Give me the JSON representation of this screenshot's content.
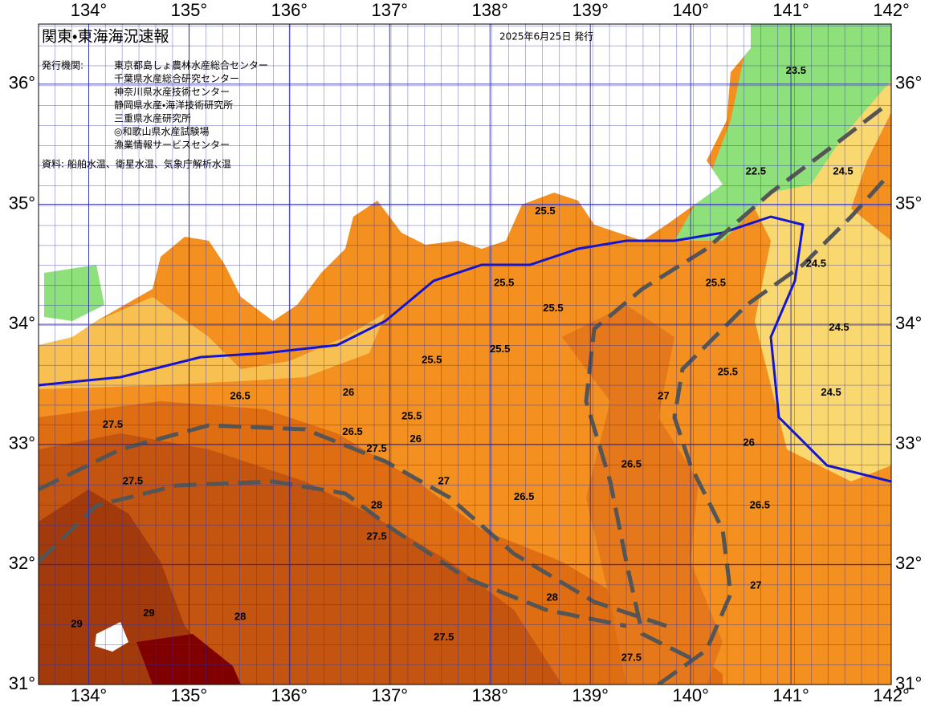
{
  "header": {
    "title": "関東・東海海況速報",
    "issued": "2025年6月25日 発行",
    "publisher_label": "発行機関:",
    "publishers": [
      "東京都島しょ農林水産総合センター",
      "千葉県水産総合研究センター",
      "神奈川県水産技術センター",
      "静岡県水産・海洋技術研究所",
      "三重県水産研究所",
      "◎和歌山県水産試験場",
      "漁業情報サービスセンター"
    ],
    "source": "資料: 船舶水温、衛星水温、気象庁解析水温"
  },
  "map": {
    "lon_range": [
      133.5,
      142
    ],
    "lat_range": [
      31,
      36.5
    ],
    "lon_ticks": [
      {
        "value": 134,
        "label": "134°"
      },
      {
        "value": 135,
        "label": "135°"
      },
      {
        "value": 136,
        "label": "136°"
      },
      {
        "value": 137,
        "label": "137°"
      },
      {
        "value": 138,
        "label": "138°"
      },
      {
        "value": 139,
        "label": "139°"
      },
      {
        "value": 140,
        "label": "140°"
      },
      {
        "value": 141,
        "label": "141°"
      },
      {
        "value": 142,
        "label": "142°"
      }
    ],
    "lat_ticks": [
      {
        "value": 31,
        "label": "31°"
      },
      {
        "value": 32,
        "label": "32°"
      },
      {
        "value": 33,
        "label": "33°"
      },
      {
        "value": 34,
        "label": "34°"
      },
      {
        "value": 35,
        "label": "35°"
      },
      {
        "value": 36,
        "label": "36°"
      }
    ],
    "contour_labels": [
      {
        "value": 25.5,
        "lon": 138.55,
        "lat": 34.94
      },
      {
        "value": 25.5,
        "lon": 138.63,
        "lat": 34.13
      },
      {
        "value": 25.5,
        "lon": 138.14,
        "lat": 34.34
      },
      {
        "value": 25.5,
        "lon": 137.42,
        "lat": 33.7
      },
      {
        "value": 25.5,
        "lon": 137.22,
        "lat": 33.23
      },
      {
        "value": 25.5,
        "lon": 138.1,
        "lat": 33.79
      },
      {
        "value": 25.5,
        "lon": 140.25,
        "lat": 34.34
      },
      {
        "value": 25.5,
        "lon": 140.37,
        "lat": 33.6
      },
      {
        "value": 24.5,
        "lon": 141.4,
        "lat": 33.43
      },
      {
        "value": 24.5,
        "lon": 141.48,
        "lat": 33.97
      },
      {
        "value": 24.5,
        "lon": 141.25,
        "lat": 34.5
      },
      {
        "value": 24.5,
        "lon": 141.52,
        "lat": 35.27
      },
      {
        "value": 22.5,
        "lon": 140.65,
        "lat": 35.27
      },
      {
        "value": 23.5,
        "lon": 141.05,
        "lat": 36.11
      },
      {
        "value": 26.5,
        "lon": 135.51,
        "lat": 33.4
      },
      {
        "value": 26.5,
        "lon": 136.63,
        "lat": 33.1
      },
      {
        "value": 26.5,
        "lon": 138.34,
        "lat": 32.56
      },
      {
        "value": 26.5,
        "lon": 139.41,
        "lat": 32.83
      },
      {
        "value": 26.5,
        "lon": 140.69,
        "lat": 32.49
      },
      {
        "value": 27.5,
        "lon": 136.87,
        "lat": 32.96
      },
      {
        "value": 27.5,
        "lon": 134.44,
        "lat": 32.69
      },
      {
        "value": 27.5,
        "lon": 136.87,
        "lat": 32.23
      },
      {
        "value": 27.5,
        "lon": 139.41,
        "lat": 31.22
      },
      {
        "value": 27.5,
        "lon": 137.54,
        "lat": 31.39
      },
      {
        "value": 27.5,
        "lon": 134.24,
        "lat": 33.16
      },
      {
        "value": 26,
        "lon": 136.59,
        "lat": 33.43
      },
      {
        "value": 26,
        "lon": 137.26,
        "lat": 33.04
      },
      {
        "value": 26,
        "lon": 140.58,
        "lat": 33.01
      },
      {
        "value": 28,
        "lon": 135.51,
        "lat": 31.56
      },
      {
        "value": 28,
        "lon": 136.87,
        "lat": 32.49
      },
      {
        "value": 28,
        "lon": 138.62,
        "lat": 31.72
      },
      {
        "value": 29,
        "lon": 134.6,
        "lat": 31.59
      },
      {
        "value": 29,
        "lon": 133.88,
        "lat": 31.5
      },
      {
        "value": 27,
        "lon": 139.73,
        "lat": 33.4
      },
      {
        "value": 27,
        "lon": 140.65,
        "lat": 31.82
      },
      {
        "value": 27,
        "lon": 137.54,
        "lat": 32.69
      }
    ]
  }
}
